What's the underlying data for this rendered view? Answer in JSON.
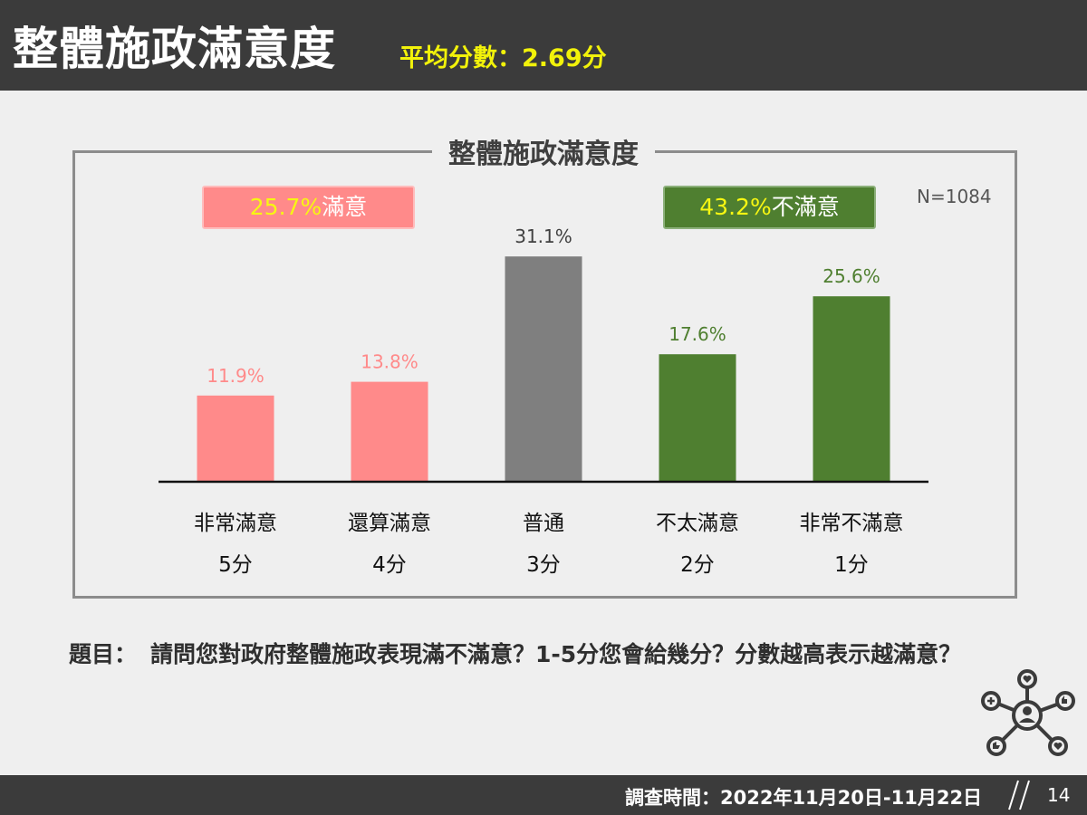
{
  "header": {
    "title": "整體施政滿意度",
    "subtitle": "平均分數：2.69分"
  },
  "summary": {
    "satisfied_pct": "25.7%",
    "satisfied_word": "滿意",
    "dissatisfied_pct": "43.2%",
    "dissatisfied_word": "不滿意",
    "sample_size": "N=1084"
  },
  "colors": {
    "satisfied": "#ff8a8a",
    "neutral": "#7f7f7f",
    "dissatisfied": "#4f7f30",
    "header_bg": "#3b3b3b",
    "subtitle": "#f2f20a"
  },
  "chart_data": {
    "type": "bar",
    "title": "整體施政滿意度",
    "categories": [
      "非常滿意",
      "還算滿意",
      "普通",
      "不太滿意",
      "非常不滿意"
    ],
    "scores": [
      "5分",
      "4分",
      "3分",
      "2分",
      "1分"
    ],
    "values": [
      11.9,
      13.8,
      31.1,
      17.6,
      25.6
    ],
    "value_labels": [
      "11.9%",
      "13.8%",
      "31.1%",
      "17.6%",
      "25.6%"
    ],
    "groups": [
      "satisfied",
      "satisfied",
      "neutral",
      "dissatisfied",
      "dissatisfied"
    ],
    "ylim": [
      0,
      40
    ],
    "grid": false,
    "legend": "none"
  },
  "question": {
    "label": "題目：",
    "text": "請問您對政府整體施政表現滿不滿意？1-5分您會給幾分？分數越高表示越滿意？"
  },
  "footer": {
    "survey_time": "調查時間：2022年11月20日-11月22日",
    "page_number": "14"
  },
  "icons": {
    "corner": "social-network-icon",
    "divider": "double-slash-icon"
  }
}
